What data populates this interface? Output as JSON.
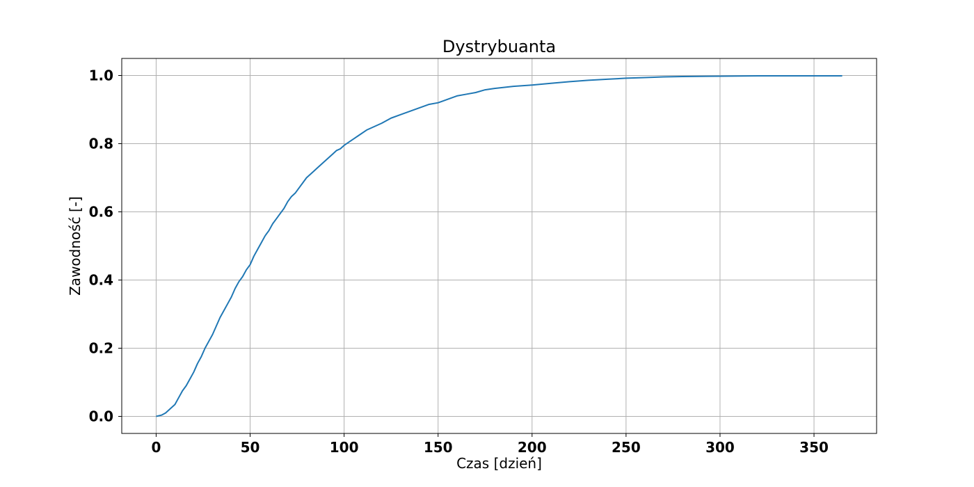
{
  "chart_data": {
    "type": "line",
    "title": "Dystrybuanta",
    "xlabel": "Czas [dzień]",
    "ylabel": "Zawodność [-]",
    "xlim": [
      -18.3,
      383.3
    ],
    "ylim": [
      -0.05,
      1.05
    ],
    "xticks": [
      0,
      50,
      100,
      150,
      200,
      250,
      300,
      350
    ],
    "yticks": [
      0.0,
      0.2,
      0.4,
      0.6,
      0.8,
      1.0
    ],
    "xtick_labels": [
      "0",
      "50",
      "100",
      "150",
      "200",
      "250",
      "300",
      "350"
    ],
    "ytick_labels": [
      "0.0",
      "0.2",
      "0.4",
      "0.6",
      "0.8",
      "1.0"
    ],
    "grid": true,
    "series": [
      {
        "color": "#1f77b4",
        "x": [
          0,
          3,
          5,
          7,
          10,
          12,
          14,
          16,
          18,
          20,
          22,
          24,
          26,
          28,
          30,
          32,
          34,
          36,
          38,
          40,
          42,
          44,
          46,
          48,
          50,
          52,
          54,
          56,
          58,
          60,
          62,
          64,
          66,
          68,
          70,
          72,
          74,
          76,
          78,
          80,
          82,
          84,
          86,
          88,
          90,
          92,
          94,
          96,
          98,
          100,
          104,
          108,
          112,
          116,
          120,
          125,
          130,
          135,
          140,
          145,
          150,
          155,
          160,
          165,
          170,
          175,
          180,
          190,
          200,
          210,
          220,
          230,
          240,
          250,
          260,
          270,
          280,
          300,
          320,
          340,
          365
        ],
        "y": [
          0.0,
          0.004,
          0.01,
          0.02,
          0.035,
          0.055,
          0.075,
          0.09,
          0.11,
          0.13,
          0.155,
          0.175,
          0.2,
          0.22,
          0.24,
          0.265,
          0.29,
          0.31,
          0.33,
          0.35,
          0.375,
          0.395,
          0.41,
          0.43,
          0.445,
          0.47,
          0.49,
          0.51,
          0.53,
          0.545,
          0.565,
          0.58,
          0.595,
          0.61,
          0.63,
          0.645,
          0.655,
          0.67,
          0.685,
          0.7,
          0.71,
          0.72,
          0.73,
          0.74,
          0.75,
          0.76,
          0.77,
          0.78,
          0.785,
          0.795,
          0.81,
          0.825,
          0.84,
          0.85,
          0.86,
          0.875,
          0.885,
          0.895,
          0.905,
          0.915,
          0.92,
          0.93,
          0.94,
          0.945,
          0.95,
          0.958,
          0.962,
          0.968,
          0.972,
          0.977,
          0.982,
          0.986,
          0.989,
          0.992,
          0.994,
          0.996,
          0.997,
          0.998,
          0.999,
          0.999,
          0.999
        ]
      }
    ]
  }
}
